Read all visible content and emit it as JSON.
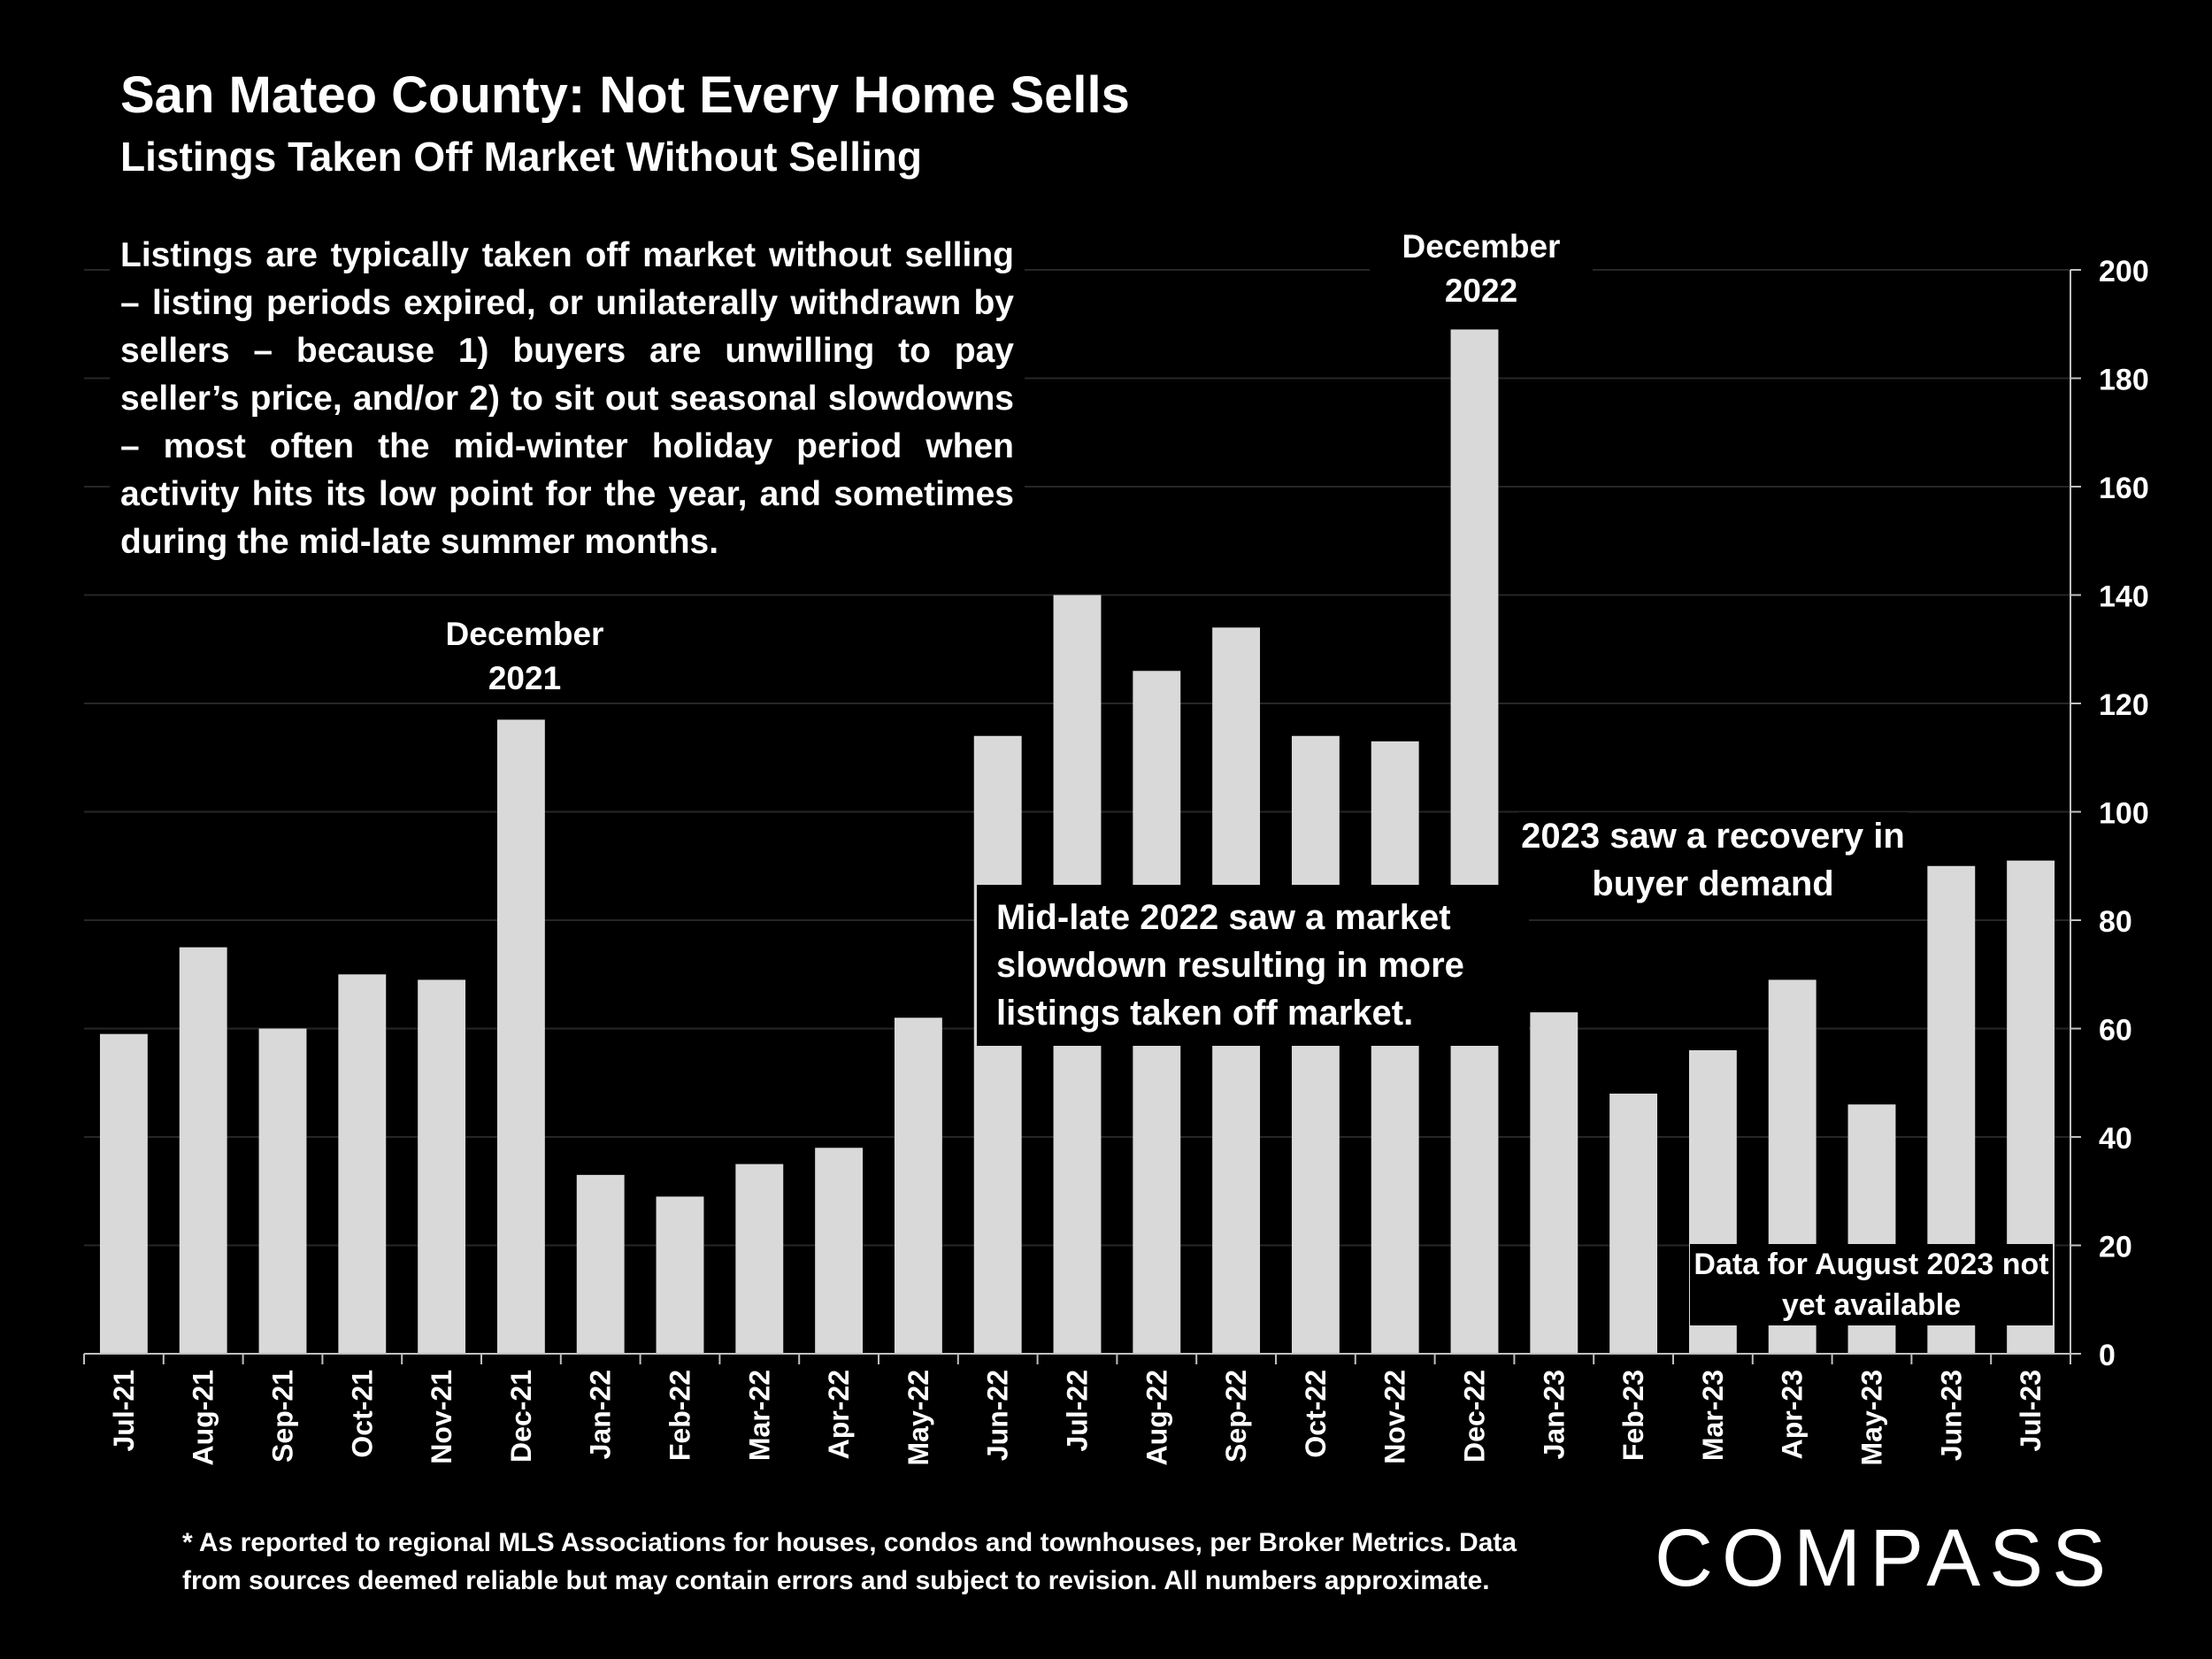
{
  "title": "San Mateo County: Not Every Home Sells",
  "subtitle": "Listings Taken Off Market Without Selling",
  "description": "Listings are typically taken off market without selling – listing periods expired, or unilaterally withdrawn by sellers – because 1) buyers are unwilling to pay seller’s price, and/or 2) to sit out seasonal slowdowns – most often the mid-winter holiday period when activity hits its low point for the year, and sometimes during the mid-late summer months.",
  "annotations": {
    "dec2021": "December 2021",
    "dec2022": "December 2022",
    "slowdown": "Mid-late 2022 saw a market slowdown resulting in more listings taken off market.",
    "recovery": "2023 saw a recovery in buyer demand",
    "august": "Data for August 2023 not yet available"
  },
  "footnote": "* As reported to regional MLS Associations for houses, condos and townhouses, per Broker Metrics. Data from sources deemed reliable but may contain errors and subject to revision. All numbers approximate.",
  "logo": "COMPASS",
  "colors": {
    "background": "#000000",
    "bar": "#d9d9d9",
    "text": "#ffffff",
    "gridline": "#262626"
  },
  "chart_data": {
    "type": "bar",
    "categories": [
      "Jul-21",
      "Aug-21",
      "Sep-21",
      "Oct-21",
      "Nov-21",
      "Dec-21",
      "Jan-22",
      "Feb-22",
      "Mar-22",
      "Apr-22",
      "May-22",
      "Jun-22",
      "Jul-22",
      "Aug-22",
      "Sep-22",
      "Oct-22",
      "Nov-22",
      "Dec-22",
      "Jan-23",
      "Feb-23",
      "Mar-23",
      "Apr-23",
      "May-23",
      "Jun-23",
      "Jul-23"
    ],
    "values": [
      59,
      75,
      60,
      70,
      69,
      117,
      33,
      29,
      35,
      38,
      62,
      114,
      140,
      126,
      134,
      114,
      113,
      189,
      63,
      48,
      56,
      69,
      46,
      90,
      91
    ],
    "ylim": [
      0,
      200
    ],
    "yticks": [
      0,
      20,
      40,
      60,
      80,
      100,
      120,
      140,
      160,
      180,
      200
    ],
    "y_axis_position": "right",
    "grid": true,
    "legend": "none"
  }
}
